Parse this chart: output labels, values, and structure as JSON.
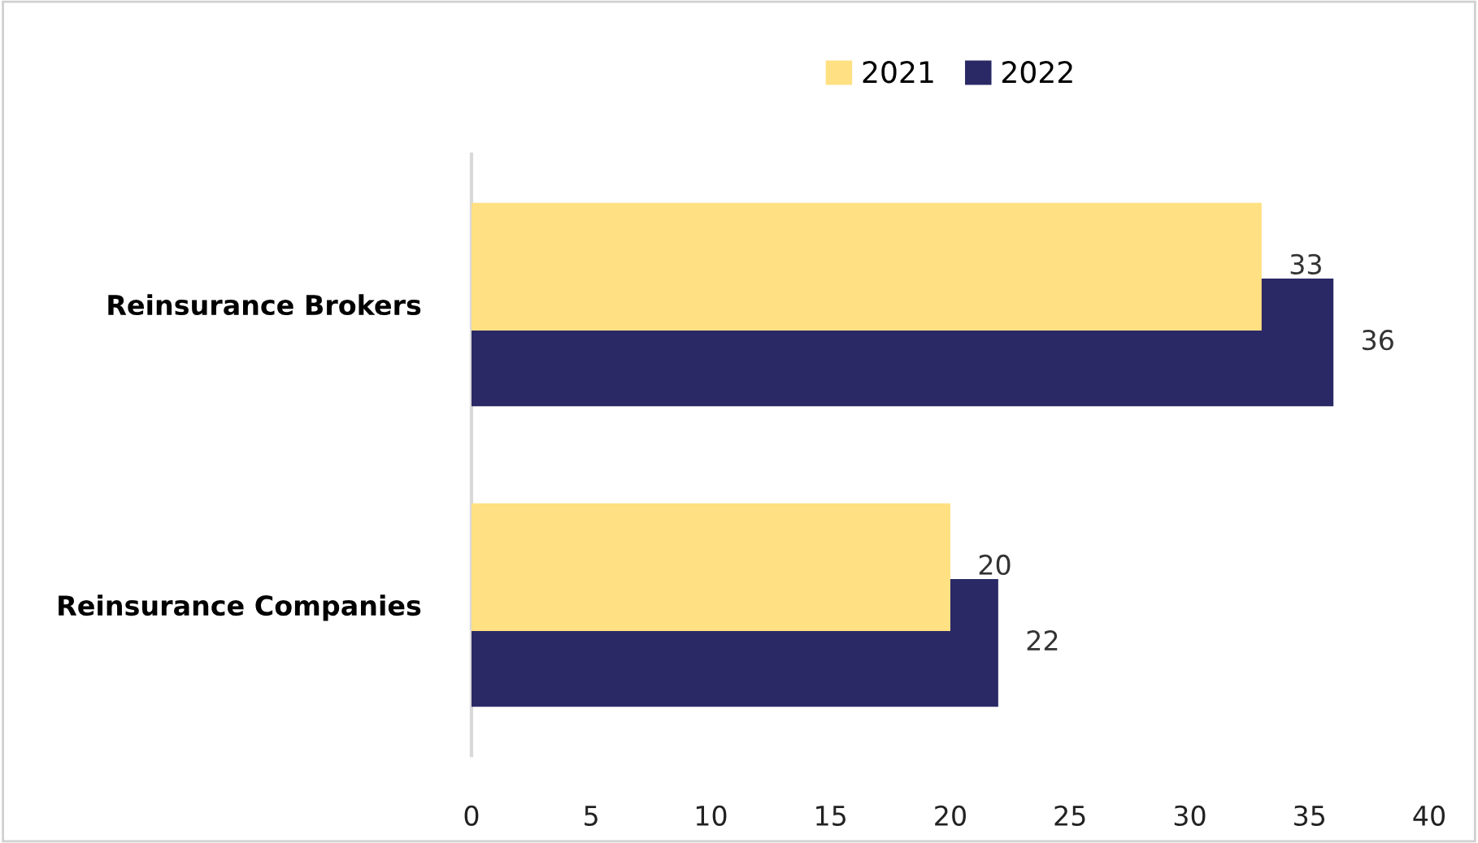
{
  "chart_data": {
    "type": "bar",
    "orientation": "horizontal",
    "categories": [
      "Reinsurance Brokers",
      "Reinsurance Companies"
    ],
    "series": [
      {
        "name": "2021",
        "color": "#ffe082",
        "values": [
          33,
          20
        ]
      },
      {
        "name": "2022",
        "color": "#2a2966",
        "values": [
          36,
          22
        ]
      }
    ],
    "xlim": [
      0,
      40
    ],
    "xticks": [
      0,
      5,
      10,
      15,
      20,
      25,
      30,
      35,
      40
    ],
    "data_labels": true,
    "legend": "top",
    "grid": false
  }
}
